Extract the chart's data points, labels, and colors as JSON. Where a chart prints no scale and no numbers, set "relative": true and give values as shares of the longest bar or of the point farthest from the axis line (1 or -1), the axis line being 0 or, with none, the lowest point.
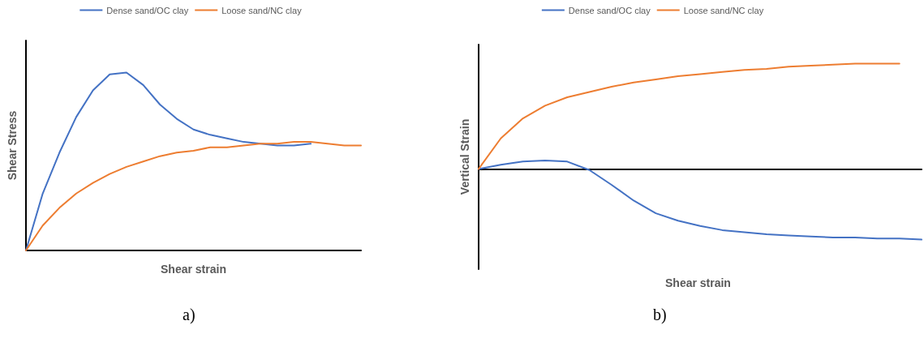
{
  "chart_data": [
    {
      "type": "line",
      "relative": true,
      "xlabel": "Shear strain",
      "ylabel": "Shear Stress",
      "legend": "top",
      "grid": false,
      "annotations": [
        "a)"
      ],
      "categories": [
        null,
        null,
        null,
        null,
        null,
        null,
        null,
        null,
        null,
        null,
        null,
        null,
        null,
        null,
        null,
        null,
        null,
        null,
        null,
        null,
        null
      ],
      "series": [
        {
          "name": "Dense sand/OC clay",
          "color": "#4472c4",
          "values": [
            0,
            0.32,
            0.55,
            0.75,
            0.9,
            0.99,
            1.0,
            0.93,
            0.82,
            0.74,
            0.68,
            0.65,
            0.63,
            0.61,
            0.6,
            0.59,
            0.59,
            0.6,
            null,
            null,
            null
          ]
        },
        {
          "name": "Loose sand/NC clay",
          "color": "#ed7d31",
          "values": [
            0,
            0.14,
            0.24,
            0.32,
            0.38,
            0.43,
            0.47,
            0.5,
            0.53,
            0.55,
            0.56,
            0.58,
            0.58,
            0.59,
            0.6,
            0.6,
            0.61,
            0.61,
            0.6,
            0.59,
            0.59
          ]
        }
      ]
    },
    {
      "type": "line",
      "relative": true,
      "xlabel": "Shear strain",
      "ylabel": "Vertical Strain",
      "legend": "top",
      "grid": false,
      "annotations": [
        "b)"
      ],
      "categories": [
        null,
        null,
        null,
        null,
        null,
        null,
        null,
        null,
        null,
        null,
        null,
        null,
        null,
        null,
        null,
        null,
        null,
        null,
        null,
        null,
        null
      ],
      "series": [
        {
          "name": "Dense sand/OC clay",
          "color": "#4472c4",
          "values": [
            0,
            0.04,
            0.07,
            0.08,
            0.07,
            -0.01,
            -0.15,
            -0.3,
            -0.42,
            -0.49,
            -0.54,
            -0.58,
            -0.6,
            -0.62,
            -0.63,
            -0.64,
            -0.65,
            -0.65,
            -0.66,
            -0.66,
            -0.67
          ]
        },
        {
          "name": "Loose sand/NC clay",
          "color": "#ed7d31",
          "values": [
            0,
            0.29,
            0.48,
            0.6,
            0.68,
            0.73,
            0.78,
            0.82,
            0.85,
            0.88,
            0.9,
            0.92,
            0.94,
            0.95,
            0.97,
            0.98,
            0.99,
            1,
            1,
            1,
            null
          ]
        }
      ]
    }
  ]
}
